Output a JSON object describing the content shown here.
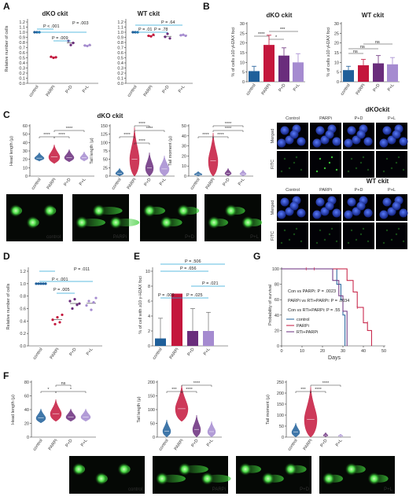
{
  "panels": {
    "A": "A",
    "B": "B",
    "C": "C",
    "D": "D",
    "E": "E",
    "F": "F",
    "G": "G"
  },
  "groups4": [
    "control",
    "PARPi",
    "P+D",
    "P+L"
  ],
  "colors": {
    "control": "#1f5f9a",
    "parpi": "#c4163c",
    "pd": "#6a2d7c",
    "pl": "#a58bd0",
    "bracket": "#2aa7d8",
    "micro_nuclei": "#1a32a8",
    "comet": "#3fcf3a"
  },
  "panel_a": {
    "ylabel": "Relative number of cells",
    "yticks": [
      "0.0",
      "0.1",
      "0.2",
      "0.3",
      "0.4",
      "0.5",
      "0.6",
      "0.7",
      "0.8",
      "0.9",
      "1.0",
      "1.1",
      "1.2"
    ],
    "left": {
      "title": "dKO ckit",
      "pvals": [
        "P < .001",
        "P = .009",
        "P = .003"
      ]
    },
    "right": {
      "title": "WT ckit",
      "pvals": [
        "P = .01",
        "P = .78",
        "P = .64"
      ]
    }
  },
  "panel_b": {
    "ylabel": "% of cells ≥10 γH2AX foci",
    "left": {
      "title": "dKO ckit",
      "yticks": [
        "0",
        "5",
        "10",
        "15",
        "20",
        "25",
        "30"
      ],
      "stars": [
        "****",
        "*",
        "***"
      ]
    },
    "right": {
      "title": "WT ckit",
      "yticks": [
        "0",
        "5",
        "10",
        "15",
        "20",
        "25",
        "30"
      ],
      "stars": [
        "ns",
        "ns",
        "ns"
      ]
    }
  },
  "panel_c": {
    "title": "dKO ckit",
    "plots": [
      {
        "ylabel": "Head length (μ)",
        "yticks": [
          "0",
          "10",
          "20",
          "30",
          "40",
          "50",
          "60"
        ],
        "stars": [
          "****",
          "****",
          "****"
        ]
      },
      {
        "ylabel": "Tail length (μ)",
        "yticks": [
          "0",
          "25",
          "50",
          "75",
          "100",
          "125",
          "150"
        ],
        "stars": [
          "****",
          "****",
          "****",
          "****"
        ]
      },
      {
        "ylabel": "Tail moment (μ)",
        "yticks": [
          "0",
          "10",
          "20",
          "30",
          "40",
          "50"
        ],
        "stars": [
          "****",
          "****",
          "****",
          "****"
        ]
      }
    ],
    "images": [
      "control",
      "PARPi",
      "P+D",
      "P+L"
    ],
    "micro": {
      "dko_title": "dKOckit",
      "wt_title": "WT ckit",
      "cols": [
        "Control",
        "PARPi",
        "P+D",
        "P+L"
      ],
      "rows": [
        "Merged",
        "FITC"
      ]
    }
  },
  "panel_d": {
    "ylabel": "Relative number of cells",
    "yticks": [
      "0.0",
      "0.2",
      "0.4",
      "0.6",
      "0.8",
      "1.0",
      "1.2"
    ],
    "pvals": [
      "P < .001",
      "P = .005",
      "P = .011"
    ]
  },
  "panel_e": {
    "ylabel": "% of cell with ≥10 γ-H2AX foci",
    "yticks": [
      "0",
      "2",
      "4",
      "6",
      "8",
      "10"
    ],
    "pvals": [
      "P = .506",
      "P = .656",
      "P = .021",
      "P = .009",
      "P = .025"
    ]
  },
  "panel_g": {
    "ylabel": "Probability of survival",
    "xlabel": "Days",
    "yticks": [
      "0",
      "20",
      "40",
      "60",
      "80",
      "100"
    ],
    "xticks": [
      "0",
      "10",
      "20",
      "30",
      "40",
      "50"
    ],
    "pvals": [
      "Con vs PARPi: P = .0023",
      "PARPi vs RTi+PARPi: P = .0034",
      "Con vs RTi+PARPi: P = .55"
    ],
    "legend": [
      "control",
      "PARPi",
      "RTi+PARPi"
    ]
  },
  "panel_f": {
    "plots": [
      {
        "ylabel": "Head length (μ)",
        "yticks": [
          "0",
          "20",
          "40",
          "60",
          "80"
        ],
        "stars": [
          "*",
          "ns",
          "*"
        ]
      },
      {
        "ylabel": "Tail length (μ)",
        "yticks": [
          "0",
          "50",
          "100",
          "150",
          "200"
        ],
        "stars": [
          "***",
          "****",
          "****"
        ]
      },
      {
        "ylabel": "Tail moment (μ)",
        "yticks": [
          "0",
          "50",
          "100",
          "150",
          "200",
          "250"
        ],
        "stars": [
          "***",
          "****",
          "****"
        ]
      }
    ],
    "images": [
      "control",
      "PARPi",
      "P+D",
      "P+L"
    ]
  }
}
